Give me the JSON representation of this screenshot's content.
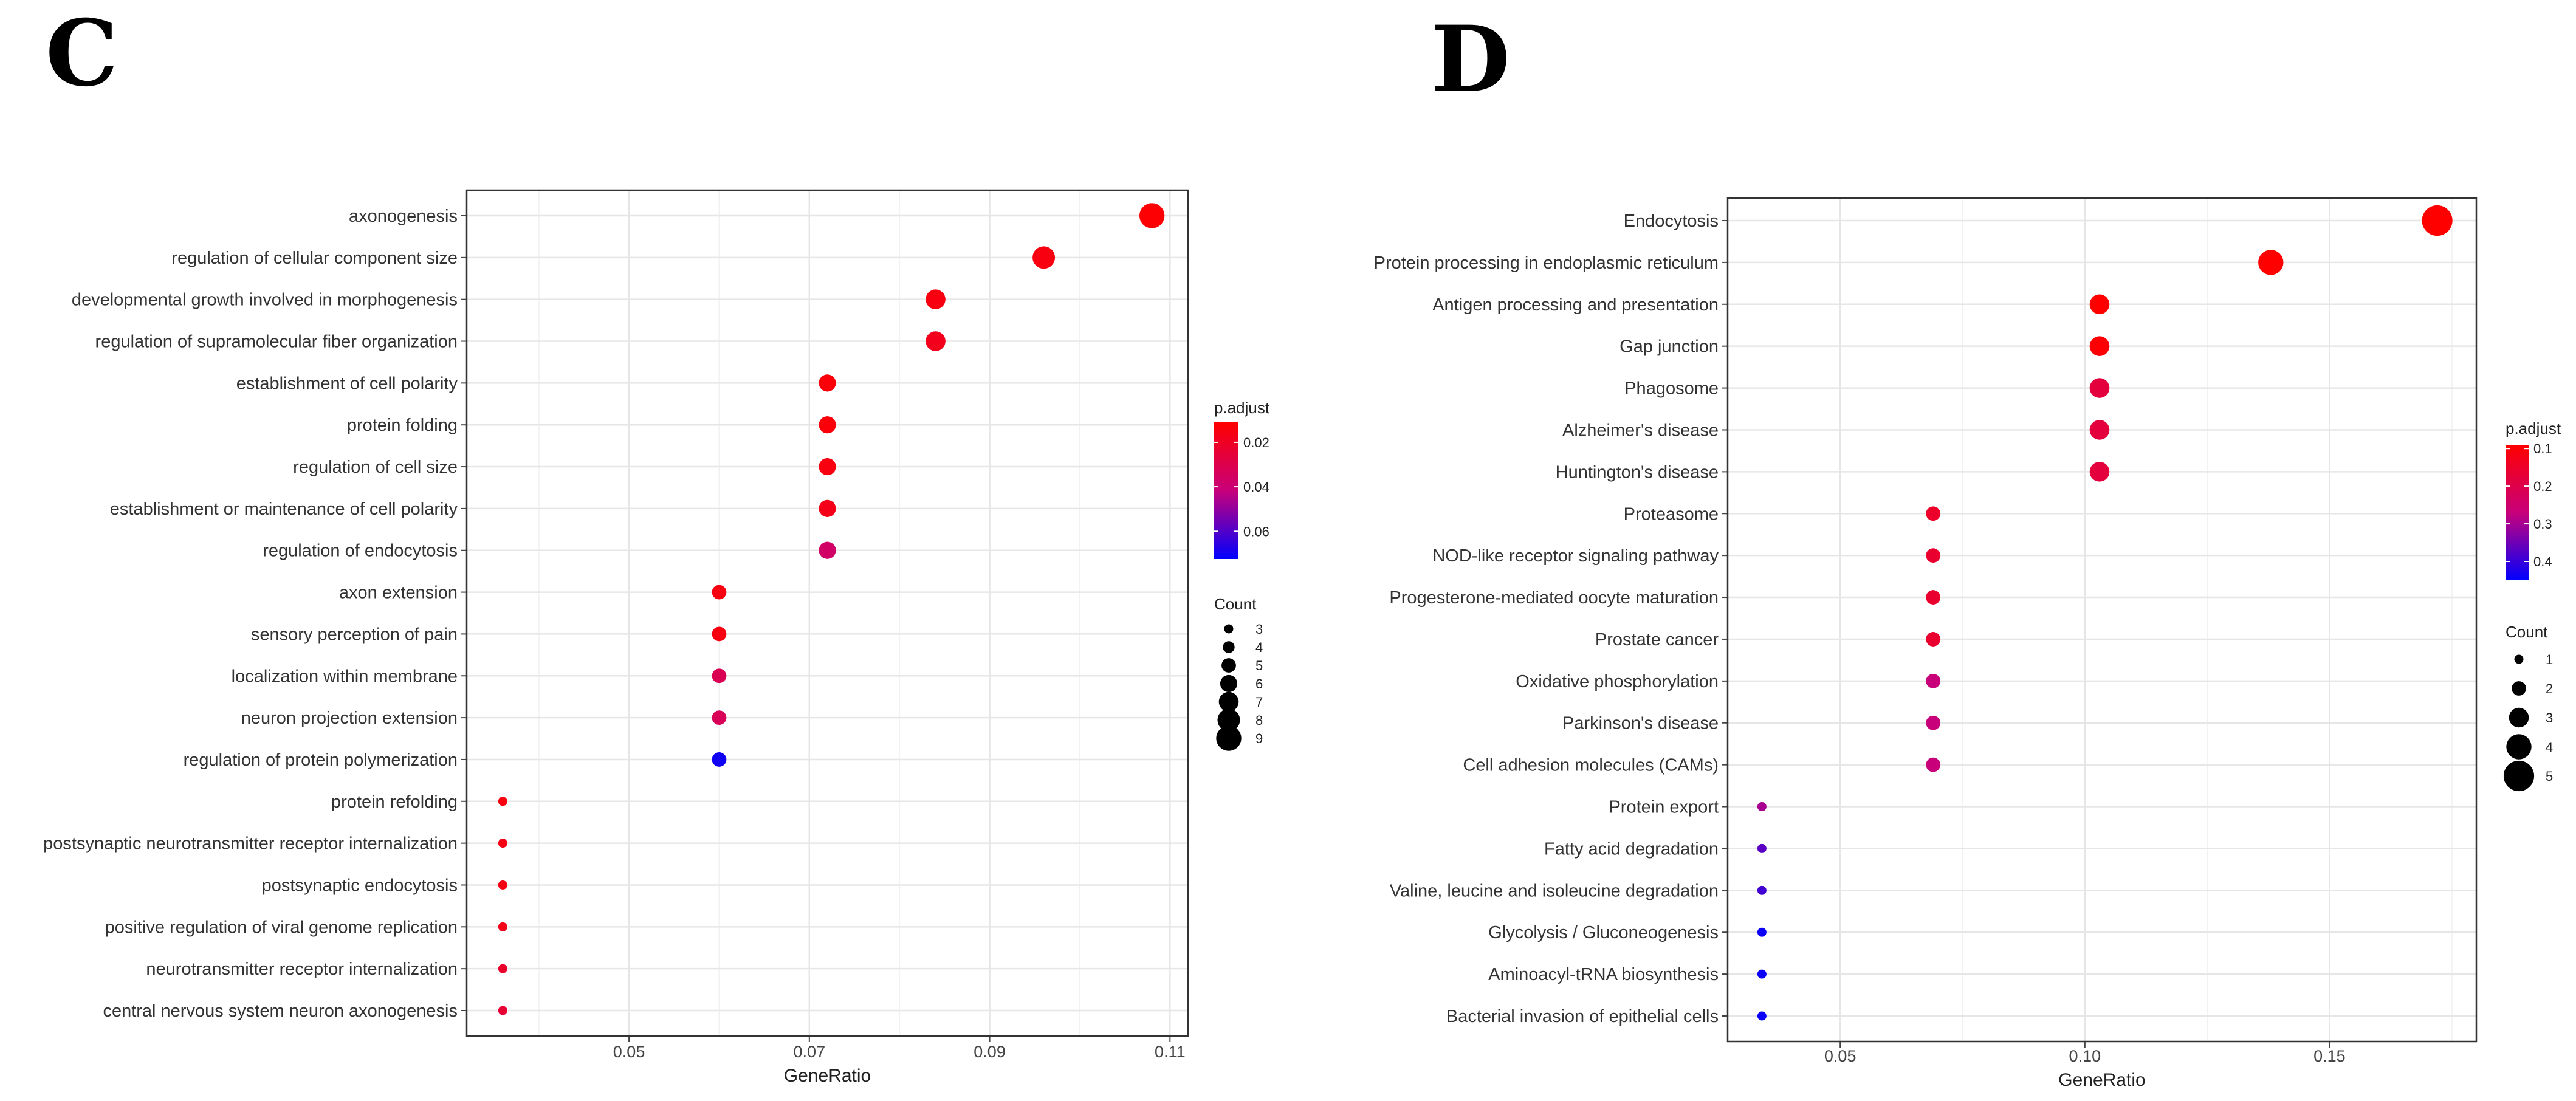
{
  "chart_data": [
    {
      "panel": "C",
      "type": "scatter",
      "subtype": "dotplot",
      "xlabel": "GeneRatio",
      "ylabel": "",
      "xlim": [
        0.032,
        0.112
      ],
      "xticks": [
        0.05,
        0.07,
        0.09,
        0.11
      ],
      "xtick_labels": [
        "0.05",
        "0.07",
        "0.09",
        "0.11"
      ],
      "grid": true,
      "color_legend": {
        "title": "p.adjust",
        "range": [
          0.0725,
          0.011
        ],
        "ticks": [
          0.02,
          0.04,
          0.06
        ],
        "tick_labels": [
          "0.02",
          "0.04",
          "0.06"
        ],
        "low_color": "#FF0000",
        "high_color": "#0000FF"
      },
      "size_legend": {
        "title": "Count",
        "values": [
          3,
          4,
          5,
          6,
          7,
          8,
          9
        ],
        "labels": [
          "3",
          "4",
          "5",
          "6",
          "7",
          "8",
          "9"
        ]
      },
      "points": [
        {
          "term": "axonogenesis",
          "gene_ratio": 0.108,
          "count": 9,
          "p_adjust": 0.012
        },
        {
          "term": "regulation of cellular component size",
          "gene_ratio": 0.096,
          "count": 8,
          "p_adjust": 0.015
        },
        {
          "term": "developmental growth involved in morphogenesis",
          "gene_ratio": 0.084,
          "count": 7,
          "p_adjust": 0.015
        },
        {
          "term": "regulation of supramolecular fiber organization",
          "gene_ratio": 0.084,
          "count": 7,
          "p_adjust": 0.018
        },
        {
          "term": "establishment of cell polarity",
          "gene_ratio": 0.072,
          "count": 6,
          "p_adjust": 0.013
        },
        {
          "term": "protein folding",
          "gene_ratio": 0.072,
          "count": 6,
          "p_adjust": 0.013
        },
        {
          "term": "regulation of cell size",
          "gene_ratio": 0.072,
          "count": 6,
          "p_adjust": 0.015
        },
        {
          "term": "establishment or maintenance of cell polarity",
          "gene_ratio": 0.072,
          "count": 6,
          "p_adjust": 0.017
        },
        {
          "term": "regulation of endocytosis",
          "gene_ratio": 0.072,
          "count": 6,
          "p_adjust": 0.037
        },
        {
          "term": "axon extension",
          "gene_ratio": 0.06,
          "count": 5,
          "p_adjust": 0.015
        },
        {
          "term": "sensory perception of pain",
          "gene_ratio": 0.06,
          "count": 5,
          "p_adjust": 0.015
        },
        {
          "term": "localization within membrane",
          "gene_ratio": 0.06,
          "count": 5,
          "p_adjust": 0.032
        },
        {
          "term": "neuron projection extension",
          "gene_ratio": 0.06,
          "count": 5,
          "p_adjust": 0.033
        },
        {
          "term": "regulation of protein polymerization",
          "gene_ratio": 0.06,
          "count": 5,
          "p_adjust": 0.07
        },
        {
          "term": "protein refolding",
          "gene_ratio": 0.036,
          "count": 3,
          "p_adjust": 0.015
        },
        {
          "term": "postsynaptic neurotransmitter receptor internalization",
          "gene_ratio": 0.036,
          "count": 3,
          "p_adjust": 0.016
        },
        {
          "term": "postsynaptic endocytosis",
          "gene_ratio": 0.036,
          "count": 3,
          "p_adjust": 0.016
        },
        {
          "term": "positive regulation of viral genome replication",
          "gene_ratio": 0.036,
          "count": 3,
          "p_adjust": 0.017
        },
        {
          "term": "neurotransmitter receptor internalization",
          "gene_ratio": 0.036,
          "count": 3,
          "p_adjust": 0.022
        },
        {
          "term": "central nervous system neuron axonogenesis",
          "gene_ratio": 0.036,
          "count": 3,
          "p_adjust": 0.024
        }
      ]
    },
    {
      "panel": "D",
      "type": "scatter",
      "subtype": "dotplot",
      "xlabel": "GeneRatio",
      "ylabel": "",
      "xlim": [
        0.027,
        0.18
      ],
      "xticks": [
        0.05,
        0.1,
        0.15
      ],
      "xtick_labels": [
        "0.05",
        "0.10",
        "0.15"
      ],
      "grid": true,
      "color_legend": {
        "title": "p.adjust",
        "range": [
          0.45,
          0.09
        ],
        "ticks": [
          0.1,
          0.2,
          0.3,
          0.4
        ],
        "tick_labels": [
          "0.1",
          "0.2",
          "0.3",
          "0.4"
        ],
        "low_color": "#FF0000",
        "high_color": "#0000FF"
      },
      "size_legend": {
        "title": "Count",
        "values": [
          1,
          2,
          3,
          4,
          5
        ],
        "labels": [
          "1",
          "2",
          "3",
          "4",
          "5"
        ]
      },
      "points": [
        {
          "term": "Endocytosis",
          "gene_ratio": 0.172,
          "count": 5,
          "p_adjust": 0.09
        },
        {
          "term": "Protein processing in endoplasmic reticulum",
          "gene_ratio": 0.138,
          "count": 4,
          "p_adjust": 0.09
        },
        {
          "term": "Antigen processing and presentation",
          "gene_ratio": 0.103,
          "count": 3,
          "p_adjust": 0.09
        },
        {
          "term": "Gap junction",
          "gene_ratio": 0.103,
          "count": 3,
          "p_adjust": 0.095
        },
        {
          "term": "Phagosome",
          "gene_ratio": 0.103,
          "count": 3,
          "p_adjust": 0.18
        },
        {
          "term": "Alzheimer's disease",
          "gene_ratio": 0.103,
          "count": 3,
          "p_adjust": 0.18
        },
        {
          "term": "Huntington's disease",
          "gene_ratio": 0.103,
          "count": 3,
          "p_adjust": 0.18
        },
        {
          "term": "Proteasome",
          "gene_ratio": 0.069,
          "count": 2,
          "p_adjust": 0.15
        },
        {
          "term": "NOD-like receptor signaling pathway",
          "gene_ratio": 0.069,
          "count": 2,
          "p_adjust": 0.16
        },
        {
          "term": "Progesterone-mediated oocyte maturation",
          "gene_ratio": 0.069,
          "count": 2,
          "p_adjust": 0.16
        },
        {
          "term": "Prostate cancer",
          "gene_ratio": 0.069,
          "count": 2,
          "p_adjust": 0.16
        },
        {
          "term": "Oxidative phosphorylation",
          "gene_ratio": 0.069,
          "count": 2,
          "p_adjust": 0.27
        },
        {
          "term": "Parkinson's disease",
          "gene_ratio": 0.069,
          "count": 2,
          "p_adjust": 0.27
        },
        {
          "term": "Cell adhesion molecules (CAMs)",
          "gene_ratio": 0.069,
          "count": 2,
          "p_adjust": 0.27
        },
        {
          "term": "Protein export",
          "gene_ratio": 0.034,
          "count": 1,
          "p_adjust": 0.3
        },
        {
          "term": "Fatty acid degradation",
          "gene_ratio": 0.034,
          "count": 1,
          "p_adjust": 0.37
        },
        {
          "term": "Valine, leucine and isoleucine degradation",
          "gene_ratio": 0.034,
          "count": 1,
          "p_adjust": 0.39
        },
        {
          "term": "Glycolysis / Gluconeogenesis",
          "gene_ratio": 0.034,
          "count": 1,
          "p_adjust": 0.44
        },
        {
          "term": "Aminoacyl-tRNA biosynthesis",
          "gene_ratio": 0.034,
          "count": 1,
          "p_adjust": 0.44
        },
        {
          "term": "Bacterial invasion of epithelial cells",
          "gene_ratio": 0.034,
          "count": 1,
          "p_adjust": 0.44
        }
      ]
    }
  ]
}
